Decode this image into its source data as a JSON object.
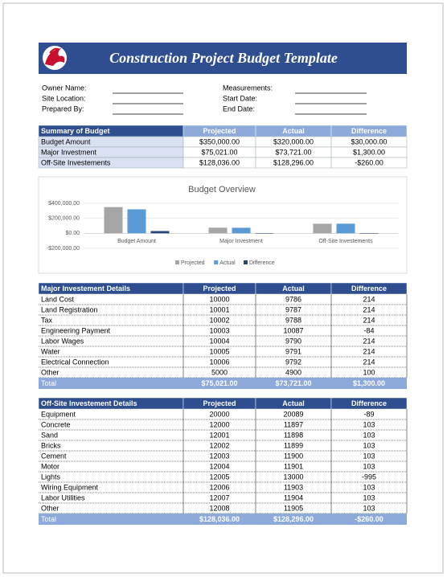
{
  "header": {
    "title": "Construction Project Budget Template"
  },
  "fields_left": [
    "Owner Name:",
    "Site Location:",
    "Prepared By:"
  ],
  "fields_right": [
    "Measurements:",
    "Start Date:",
    "End Date:"
  ],
  "summary": {
    "columns": [
      "Summary of Budget",
      "Projected",
      "Actual",
      "Difference"
    ],
    "rows": [
      [
        "Budget Amount",
        "$350,000.00",
        "$320,000.00",
        "$30,000.00"
      ],
      [
        "Major Investment",
        "$75,021.00",
        "$73,721.00",
        "$1,300.00"
      ],
      [
        "Off-Site Investements",
        "$128,036.00",
        "$128,296.00",
        "-$260.00"
      ]
    ]
  },
  "chart_data": {
    "type": "bar",
    "title": "Budget Overview",
    "categories": [
      "Budget Amount",
      "Major Investment",
      "Off-Site Investements"
    ],
    "series": [
      {
        "name": "Projected",
        "color": "#a5a5a5",
        "values": [
          350000,
          75021,
          128036
        ]
      },
      {
        "name": "Actual",
        "color": "#5b9bd5",
        "values": [
          320000,
          73721,
          128296
        ]
      },
      {
        "name": "Difference",
        "color": "#264478",
        "values": [
          30000,
          1300,
          -260
        ]
      }
    ],
    "ylim": [
      -200000,
      400000
    ],
    "yticks": [
      {
        "value": -200000,
        "label": "-$200,000.00"
      },
      {
        "value": 0,
        "label": "$0.00"
      },
      {
        "value": 200000,
        "label": "$200,000.00"
      },
      {
        "value": 400000,
        "label": "$400,000.00"
      }
    ],
    "grid": true,
    "legend": "bottom"
  },
  "major": {
    "columns": [
      "Major Investement Details",
      "Projected",
      "Actual",
      "Difference"
    ],
    "rows": [
      [
        "Land Cost",
        "10000",
        "9786",
        "214"
      ],
      [
        "Land Registration",
        "10001",
        "9787",
        "214"
      ],
      [
        "Tax",
        "10002",
        "9788",
        "214"
      ],
      [
        "Engineering Payment",
        "10003",
        "10087",
        "-84"
      ],
      [
        "Labor Wages",
        "10004",
        "9790",
        "214"
      ],
      [
        "Water",
        "10005",
        "9791",
        "214"
      ],
      [
        "Electrical Connection",
        "10006",
        "9792",
        "214"
      ],
      [
        "Other",
        "5000",
        "4900",
        "100"
      ]
    ],
    "total": [
      "Total",
      "$75,021.00",
      "$73,721.00",
      "$1,300.00"
    ]
  },
  "offsite": {
    "columns": [
      "Off-Site Investement Details",
      "Projected",
      "Actual",
      "Difference"
    ],
    "rows": [
      [
        "Equipment",
        "20000",
        "20089",
        "-89"
      ],
      [
        "Concrete",
        "12000",
        "11897",
        "103"
      ],
      [
        "Sand",
        "12001",
        "11898",
        "103"
      ],
      [
        "Bricks",
        "12002",
        "11899",
        "103"
      ],
      [
        "Cement",
        "12003",
        "11900",
        "103"
      ],
      [
        "Motor",
        "12004",
        "11901",
        "103"
      ],
      [
        "Lights",
        "12005",
        "13000",
        "-995"
      ],
      [
        "Wiring Equipment",
        "12006",
        "11903",
        "103"
      ],
      [
        "Labor Utilities",
        "12007",
        "11904",
        "103"
      ],
      [
        "Other",
        "12008",
        "11905",
        "103"
      ]
    ],
    "total": [
      "Total",
      "$128,036.00",
      "$128,296.00",
      "-$260.00"
    ]
  }
}
